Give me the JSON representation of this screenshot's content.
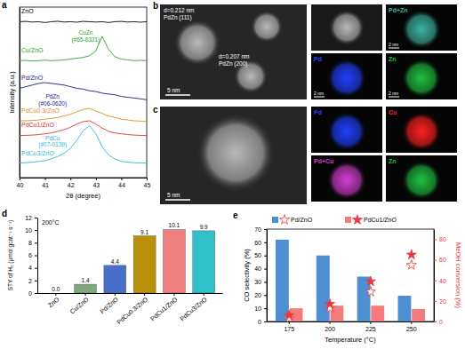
{
  "chart_data": [
    {
      "type": "line",
      "label": "a",
      "x_label": "2θ (degree)",
      "y_label": "Intensity (a.u.)",
      "x": [
        40,
        40.25,
        40.5,
        40.75,
        41,
        41.25,
        41.5,
        41.75,
        42,
        42.25,
        42.5,
        42.75,
        43,
        43.25,
        43.5,
        43.75,
        44,
        44.25,
        44.5,
        44.75,
        45
      ],
      "xlim": [
        40,
        45
      ],
      "xticks": [
        40,
        41,
        42,
        43,
        44,
        45
      ],
      "ylim": [
        0,
        10.5
      ],
      "tick_labels": "x",
      "series": [
        {
          "name": "ZnO",
          "color": "#000000",
          "values": [
            9.6,
            9.62,
            9.58,
            9.6,
            9.55,
            9.6,
            9.63,
            9.58,
            9.6,
            9.57,
            9.62,
            9.6,
            9.58,
            9.6,
            9.55,
            9.6,
            9.62,
            9.58,
            9.6,
            9.57,
            9.6
          ]
        },
        {
          "name": "Cu/ZnO",
          "color": "#2ca02c",
          "values": [
            7.2,
            7.22,
            7.18,
            7.2,
            7.23,
            7.2,
            7.22,
            7.25,
            7.3,
            7.35,
            7.4,
            7.5,
            7.8,
            8.7,
            7.9,
            7.45,
            7.3,
            7.25,
            7.2,
            7.22,
            7.2
          ]
        },
        {
          "name": "Pd/ZnO",
          "color": "#1a1a8c",
          "values": [
            5.5,
            5.6,
            5.7,
            5.8,
            5.85,
            5.8,
            5.75,
            5.7,
            5.6,
            5.5,
            5.45,
            5.35,
            5.3,
            5.2,
            5.15,
            5.1,
            5.0,
            4.95,
            4.9,
            4.85,
            4.8
          ]
        },
        {
          "name": "PdCu0.3/ZnO",
          "color": "#d98c1f",
          "values": [
            3.5,
            3.5,
            3.52,
            3.55,
            3.6,
            3.65,
            3.7,
            3.8,
            3.9,
            4.05,
            4.2,
            4.25,
            4.1,
            3.95,
            3.8,
            3.7,
            3.6,
            3.55,
            3.5,
            3.48,
            3.45
          ]
        },
        {
          "name": "PdCu1/ZnO",
          "color": "#e03030",
          "values": [
            2.6,
            2.6,
            2.62,
            2.65,
            2.7,
            2.75,
            2.85,
            2.95,
            3.1,
            3.3,
            3.45,
            3.5,
            3.3,
            3.05,
            2.85,
            2.75,
            2.7,
            2.65,
            2.62,
            2.6,
            2.6
          ]
        },
        {
          "name": "PdCu3/ZnO",
          "color": "#2cb8d8",
          "values": [
            0.9,
            0.92,
            0.95,
            1.0,
            1.05,
            1.15,
            1.3,
            1.5,
            1.8,
            2.3,
            2.9,
            3.2,
            2.7,
            1.9,
            1.4,
            1.15,
            1.0,
            0.95,
            0.92,
            0.9,
            0.9
          ]
        }
      ],
      "annotations": [
        {
          "text": "CuZn",
          "x": 42.6,
          "y": 8.8,
          "color": "#2ca02c"
        },
        {
          "text": "(#65-6321)",
          "x": 42.6,
          "y": 8.35,
          "color": "#2ca02c"
        },
        {
          "text": "PdZn",
          "x": 41.3,
          "y": 4.85,
          "color": "#1a1a8c"
        },
        {
          "text": "(#06-0620)",
          "x": 41.3,
          "y": 4.45,
          "color": "#1a1a8c"
        },
        {
          "text": "PdCu",
          "x": 41.3,
          "y": 2.3,
          "color": "#2cb8d8"
        },
        {
          "text": "(#07-0139)",
          "x": 41.3,
          "y": 1.9,
          "color": "#2cb8d8"
        }
      ]
    },
    {
      "type": "bar",
      "label": "d",
      "title": "200°C",
      "y_label": "STY of H₂ (μmol gcat⁻¹ s⁻¹)",
      "categories": [
        "ZnO",
        "Cu/ZnO",
        "Pd/ZnO",
        "PdCu0.3/ZnO",
        "PdCu1/ZnO",
        "PdCu3/ZnO"
      ],
      "values": [
        0.0,
        1.4,
        4.4,
        9.1,
        10.1,
        9.9
      ],
      "value_labels": [
        "0.0",
        "1.4",
        "4.4",
        "9.1",
        "10.1",
        "9.9"
      ],
      "colors": [
        "#8c8c8c",
        "#7fa87f",
        "#4a6fc8",
        "#b8900a",
        "#f08080",
        "#30c0c8"
      ],
      "ylim": [
        0,
        12
      ],
      "yticks": [
        0,
        2,
        4,
        6,
        8,
        10,
        12
      ],
      "data_labels": true
    },
    {
      "type": "bar",
      "label": "e",
      "x_label": "Temperature (°C)",
      "y_label": "CO selectivity (%)",
      "y2_label": "MeOH conversion (%)",
      "categories": [
        "175",
        "200",
        "225",
        "250"
      ],
      "ylim": [
        0,
        70
      ],
      "yticks": [
        0,
        10,
        20,
        30,
        40,
        50,
        60,
        70
      ],
      "y2lim": [
        0,
        90
      ],
      "y2ticks": [
        0,
        20,
        40,
        60,
        80
      ],
      "legend": "top",
      "series": [
        {
          "name": "Pd/ZnO",
          "color": "#4d8fd1",
          "values": [
            62,
            50,
            34,
            19.5
          ],
          "conversion": [
            3,
            13,
            29,
            55
          ],
          "marker": "star-open"
        },
        {
          "name": "PdCu1/ZnO",
          "color": "#f47c7c",
          "values": [
            10,
            12,
            12,
            9.5
          ],
          "conversion": [
            6,
            17,
            39,
            65
          ],
          "marker": "star"
        }
      ]
    }
  ],
  "micrographs": [
    {
      "label": "b",
      "scale_bar": "5 nm",
      "annotations": [
        {
          "text": "d=0.212 nm"
        },
        {
          "text": "PdZn (111)"
        },
        {
          "text": "d=0.207 nm"
        },
        {
          "text": "PdZn (200)"
        }
      ],
      "maps": [
        {
          "title": "Pd+Zn",
          "color": "#3cb4a0",
          "scale_bar": "2 nm"
        },
        {
          "title": "Pd",
          "color": "#2040ff",
          "scale_bar": "2 nm"
        },
        {
          "title": "Zn",
          "color": "#20c040",
          "scale_bar": "2 nm"
        }
      ]
    },
    {
      "label": "c",
      "scale_bar": "5 nm",
      "maps": [
        {
          "title": "Pd",
          "color": "#2040ff"
        },
        {
          "title": "Cu",
          "color": "#ff2020"
        },
        {
          "title": "Pd+Cu",
          "color": "#d040d0"
        },
        {
          "title": "Zn",
          "color": "#20c040"
        }
      ]
    }
  ]
}
